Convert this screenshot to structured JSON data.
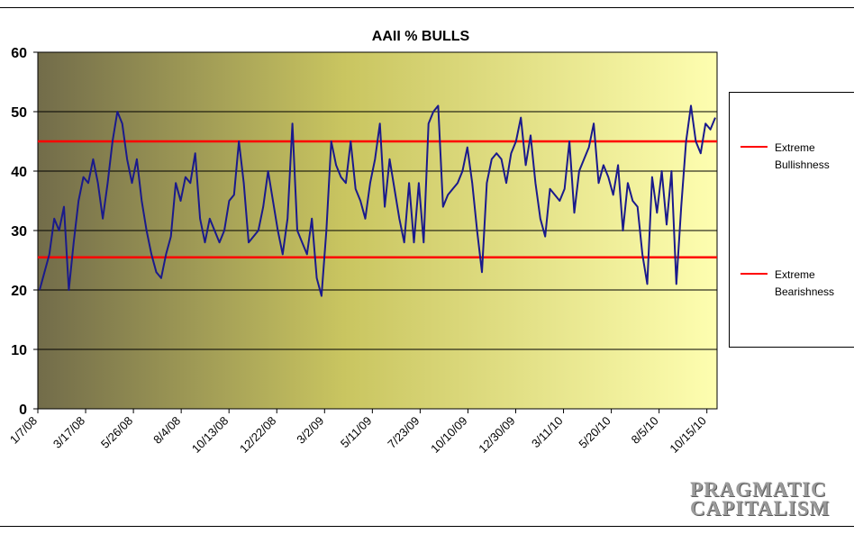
{
  "chart_data": {
    "type": "line",
    "title": "AAII % BULLS",
    "xlabel": "",
    "ylabel": "",
    "ylim": [
      0,
      60
    ],
    "yticks": [
      "0",
      "10",
      "20",
      "30",
      "40",
      "50",
      "60"
    ],
    "xtick_labels": [
      "1/7/08",
      "3/17/08",
      "5/26/08",
      "8/4/08",
      "10/13/08",
      "12/22/08",
      "3/2/09",
      "5/11/09",
      "7/23/09",
      "10/10/09",
      "12/30/09",
      "3/11/10",
      "5/20/10",
      "8/5/10",
      "10/15/10"
    ],
    "grid": "horizontal",
    "legend_position": "right",
    "series": [
      {
        "name": "",
        "color": "#1a1a8c",
        "values": [
          20,
          23,
          26,
          32,
          30,
          34,
          20,
          28,
          35,
          39,
          38,
          42,
          38,
          32,
          38,
          45,
          50,
          48,
          42,
          38,
          42,
          35,
          30,
          26,
          23,
          22,
          26,
          29,
          38,
          35,
          39,
          38,
          43,
          32,
          28,
          32,
          30,
          28,
          30,
          35,
          36,
          45,
          38,
          28,
          29,
          30,
          34,
          40,
          35,
          30,
          26,
          32,
          48,
          30,
          28,
          26,
          32,
          22,
          19,
          30,
          45,
          41,
          39,
          38,
          45,
          37,
          35,
          32,
          38,
          42,
          48,
          34,
          42,
          37,
          32,
          28,
          38,
          28,
          38,
          28,
          48,
          50,
          51,
          34,
          36,
          37,
          38,
          40,
          44,
          38,
          30,
          23,
          38,
          42,
          43,
          42,
          38,
          43,
          45,
          49,
          41,
          46,
          38,
          32,
          29,
          37,
          36,
          35,
          37,
          45,
          33,
          40,
          42,
          44,
          48,
          38,
          41,
          39,
          36,
          41,
          30,
          38,
          35,
          34,
          26,
          21,
          39,
          33,
          40,
          31,
          40,
          21,
          34,
          45,
          51,
          45,
          43,
          48,
          47,
          49
        ]
      },
      {
        "name": "Extreme Bullishness",
        "color": "#ff0000",
        "value": 45
      },
      {
        "name": "Extreme Bearishness",
        "color": "#ff0000",
        "value": 25.5
      }
    ]
  },
  "legend": {
    "bull_line1": "Extreme",
    "bull_line2": "Bullishness",
    "bear_line1": "Extreme",
    "bear_line2": "Bearishness"
  },
  "watermark": {
    "line1": "PRAGMATIC",
    "line2": "CAPITALISM"
  },
  "colors": {
    "plot_gradient_start": "#726c4a",
    "plot_gradient_mid": "#c9c560",
    "plot_gradient_end": "#fefeb0",
    "gridline": "#000000"
  }
}
